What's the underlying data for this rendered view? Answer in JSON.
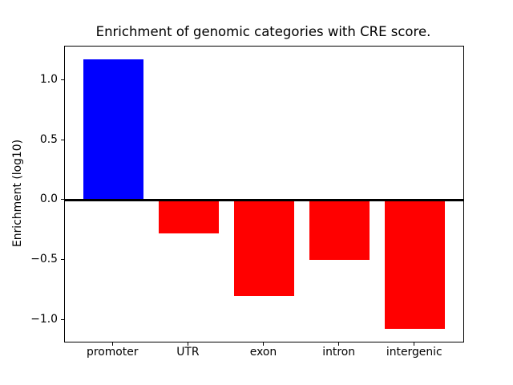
{
  "chart_data": {
    "type": "bar",
    "title": "Enrichment of genomic categories with CRE score.",
    "xlabel": "",
    "ylabel": "Enrichment (log10)",
    "categories": [
      "promoter",
      "UTR",
      "exon",
      "intron",
      "intergenic"
    ],
    "values": [
      1.17,
      -0.28,
      -0.8,
      -0.5,
      -1.07
    ],
    "bar_colors": [
      "#0000ff",
      "#ff0000",
      "#ff0000",
      "#ff0000",
      "#ff0000"
    ],
    "yticks": [
      1.0,
      0.5,
      0.0,
      -0.5,
      -1.0
    ],
    "ytick_labels": [
      "1.0",
      "0.5",
      "0.0",
      "−0.5",
      "−1.0"
    ],
    "ylim": [
      -1.18,
      1.28
    ],
    "xlim": [
      -0.64,
      4.64
    ],
    "bar_width": 0.8,
    "zero_line": true,
    "grid": false,
    "legend": null,
    "background_color": "#ffffff",
    "axis_color": "#000000"
  }
}
